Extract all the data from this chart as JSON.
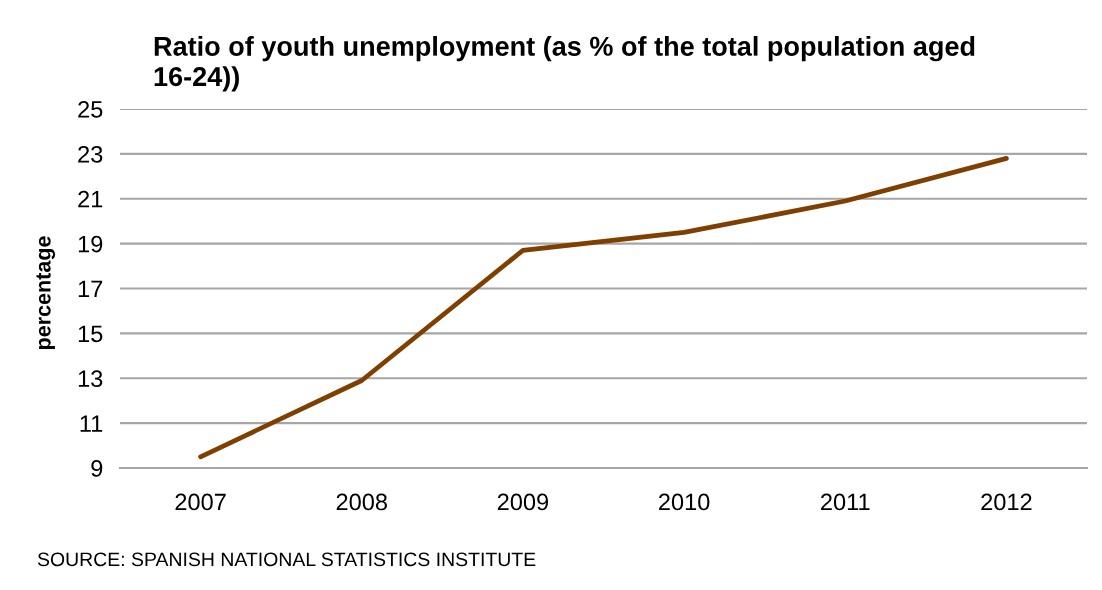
{
  "chart_data": {
    "type": "line",
    "title": "Ratio of youth unemployment (as % of the total population aged 16-24))",
    "ylabel": "percentage",
    "annotations": [
      "SOURCE: SPANISH NATIONAL STATISTICS INSTITUTE"
    ],
    "categories": [
      "2007",
      "2008",
      "2009",
      "2010",
      "2011",
      "2012"
    ],
    "series": [
      {
        "color": "#7f3f00",
        "values": [
          9.5,
          12.9,
          18.7,
          19.5,
          20.9,
          22.8
        ]
      }
    ],
    "ylim": [
      9,
      25
    ],
    "yticks": [
      9,
      11,
      13,
      15,
      17,
      19,
      21,
      23,
      25
    ],
    "grid": "y",
    "line_style": "solid"
  }
}
